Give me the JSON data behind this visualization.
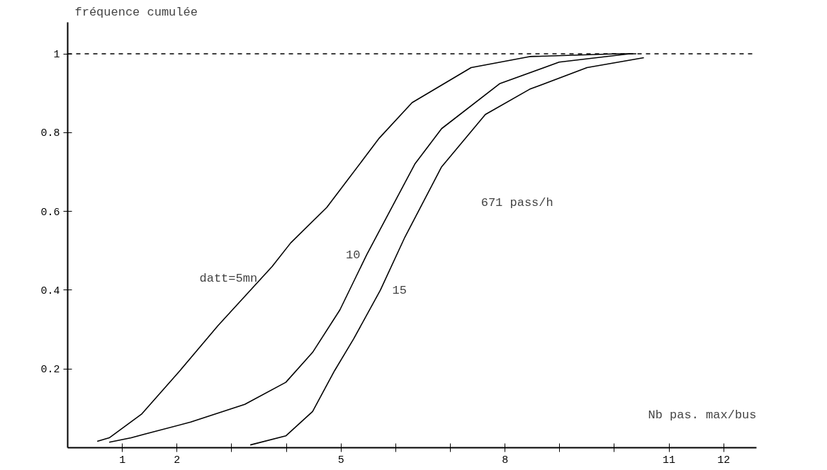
{
  "chart_data": {
    "type": "line",
    "xlabel": "Nb pas. max/bus",
    "ylabel": "fréquence cumulée",
    "xlim": [
      0,
      12.6
    ],
    "ylim": [
      0,
      1.08
    ],
    "xticks": [
      1,
      2,
      {
        "value": 3,
        "label": null
      },
      {
        "value": 4,
        "label": null
      },
      5,
      {
        "value": 6,
        "label": null
      },
      {
        "value": 7,
        "label": null
      },
      8,
      {
        "value": 9,
        "label": null
      },
      {
        "value": 10,
        "label": null
      },
      11,
      12
    ],
    "yticks": [
      0.2,
      0.4,
      0.6,
      0.8,
      1
    ],
    "grid": false,
    "legend": false,
    "marker": "none",
    "line_style": "solid",
    "ref_lines": [
      {
        "axis": "y",
        "value": 1,
        "label": null,
        "line_style": "dashed",
        "color": "#000000"
      }
    ],
    "annotations": [
      "671 pass/h"
    ],
    "series": [
      {
        "name": "datt=5mn",
        "color": "#000000",
        "x": [
          0.54,
          0.76,
          1.35,
          2.05,
          2.75,
          3.74,
          4.08,
          4.74,
          5.7,
          6.3,
          7.38,
          8.45,
          10.06,
          10.4
        ],
        "values": [
          0.016,
          0.025,
          0.085,
          0.195,
          0.31,
          0.46,
          0.52,
          0.61,
          0.786,
          0.876,
          0.965,
          0.993,
          1.0,
          1.0
        ]
      },
      {
        "name": "10",
        "color": "#000000",
        "x": [
          0.76,
          1.16,
          1.4,
          2.25,
          3.24,
          3.99,
          4.48,
          4.98,
          5.47,
          6.35,
          6.84,
          7.9,
          8.99,
          10.28
        ],
        "values": [
          0.014,
          0.025,
          0.034,
          0.065,
          0.11,
          0.166,
          0.242,
          0.35,
          0.49,
          0.72,
          0.81,
          0.924,
          0.979,
          1.0
        ]
      },
      {
        "name": "15",
        "color": "#000000",
        "x": [
          3.34,
          3.99,
          4.48,
          4.88,
          5.23,
          5.72,
          6.17,
          6.84,
          7.64,
          8.45,
          9.5,
          10.54
        ],
        "values": [
          0.007,
          0.03,
          0.092,
          0.195,
          0.276,
          0.4,
          0.535,
          0.713,
          0.846,
          0.91,
          0.965,
          0.99
        ]
      }
    ]
  }
}
